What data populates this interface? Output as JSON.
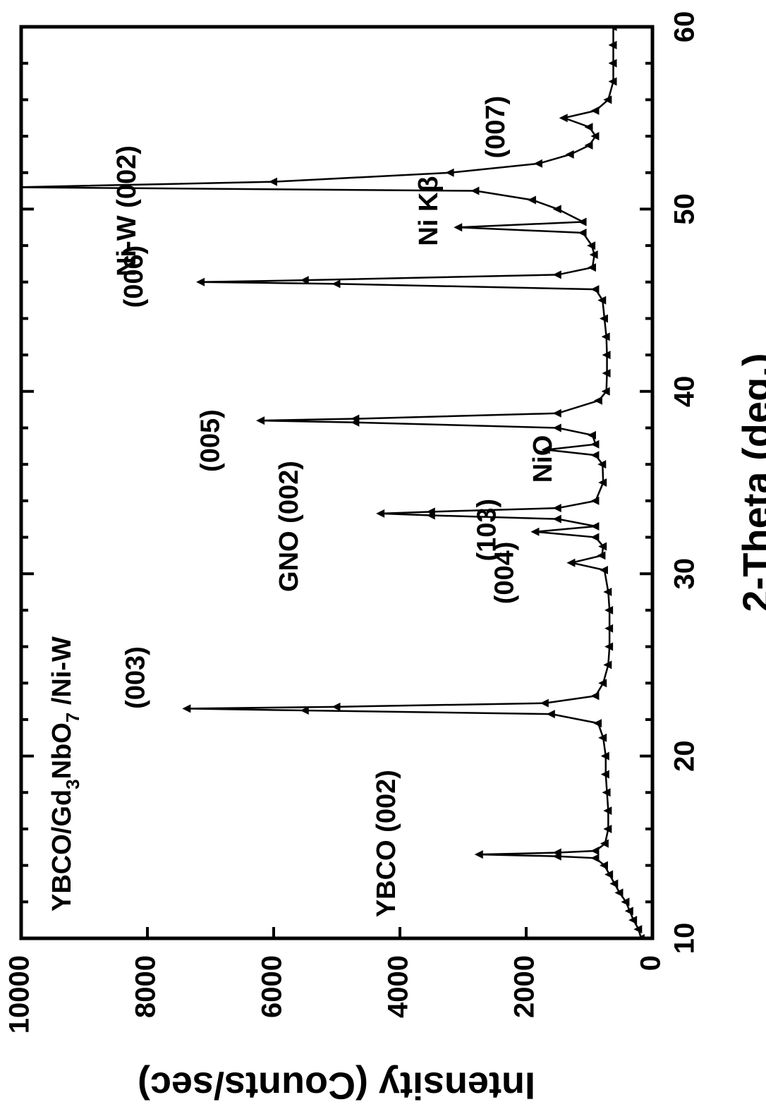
{
  "chart_data": {
    "type": "line",
    "xlabel": "2-Theta (deg.)",
    "ylabel": "Intensity (Counts/sec)",
    "sample_label": [
      {
        "text": "YBCO/Gd"
      },
      {
        "text": "3",
        "sub": true
      },
      {
        "text": "NbO"
      },
      {
        "text": "7",
        "sub": true
      },
      {
        "text": " /Ni-W"
      }
    ],
    "xlim": [
      10,
      60
    ],
    "xticks": [
      10,
      20,
      30,
      40,
      50,
      60
    ],
    "xticks_minor": [
      12,
      14,
      16,
      18,
      22,
      24,
      26,
      28,
      32,
      34,
      36,
      38,
      42,
      44,
      46,
      48,
      52,
      54,
      56,
      58
    ],
    "ylim": [
      0,
      10000
    ],
    "yticks": [
      0,
      2000,
      4000,
      6000,
      8000,
      10000
    ],
    "x": [
      10,
      10.5,
      11,
      11.5,
      12,
      12.5,
      13,
      13.5,
      14,
      14.4,
      14.5,
      14.6,
      14.7,
      14.8,
      15.2,
      16,
      17,
      18,
      19,
      20,
      21,
      21.8,
      22.3,
      22.5,
      22.6,
      22.7,
      22.9,
      23.3,
      24,
      25,
      26,
      27,
      28,
      29,
      30.2,
      30.6,
      31,
      31.5,
      32,
      32.3,
      32.6,
      33,
      33.2,
      33.3,
      33.4,
      33.6,
      34,
      35,
      36,
      36.5,
      36.8,
      37.1,
      37.6,
      38,
      38.3,
      38.4,
      38.5,
      38.8,
      39.5,
      40,
      41,
      42,
      43,
      44,
      45,
      45.6,
      45.9,
      46,
      46.1,
      46.4,
      46.8,
      47.5,
      48,
      48.7,
      49,
      49.3,
      50,
      50.5,
      51,
      51.2,
      51.5,
      52,
      52.5,
      53,
      53.5,
      54,
      54.5,
      55,
      55.4,
      56,
      57,
      58,
      59,
      60
    ],
    "series": [
      {
        "color": "#000000",
        "values": [
          180,
          220,
          300,
          360,
          420,
          520,
          600,
          680,
          760,
          900,
          1500,
          2740,
          1500,
          900,
          750,
          700,
          700,
          720,
          740,
          740,
          780,
          860,
          1600,
          5500,
          7370,
          5000,
          1700,
          900,
          780,
          700,
          680,
          680,
          680,
          700,
          760,
          1280,
          800,
          780,
          900,
          1850,
          900,
          1500,
          3500,
          4300,
          3500,
          1500,
          900,
          780,
          790,
          900,
          1680,
          900,
          950,
          1500,
          4700,
          6200,
          4700,
          1500,
          850,
          730,
          720,
          720,
          730,
          760,
          790,
          900,
          5000,
          7150,
          5500,
          1500,
          950,
          920,
          960,
          1100,
          3070,
          1100,
          1500,
          1900,
          2800,
          10100,
          6000,
          3200,
          1800,
          1300,
          1000,
          900,
          1000,
          1400,
          900,
          700,
          620,
          620,
          620,
          620
        ]
      }
    ],
    "annotations": [
      {
        "text": "YBCO (002)",
        "x": 15.2,
        "y": 4190
      },
      {
        "text": "(003)",
        "x": 24.3,
        "y": 8160
      },
      {
        "text": "(004)",
        "x": 30.05,
        "y": 2320
      },
      {
        "text": "(103)",
        "x": 32.4,
        "y": 2600
      },
      {
        "text": "GNO (002)",
        "x": 32.6,
        "y": 5730
      },
      {
        "text": "NiO",
        "x": 36.3,
        "y": 1710
      },
      {
        "text": "(005)",
        "x": 37.3,
        "y": 6980
      },
      {
        "text": "(006)",
        "x": 46.3,
        "y": 8190
      },
      {
        "text": "Ni Kβ",
        "x": 49.9,
        "y": 3520
      },
      {
        "text": "Ni-W (002)",
        "x": 49.9,
        "y": 8300
      },
      {
        "text": "(007)",
        "x": 54.5,
        "y": 2460
      }
    ]
  }
}
